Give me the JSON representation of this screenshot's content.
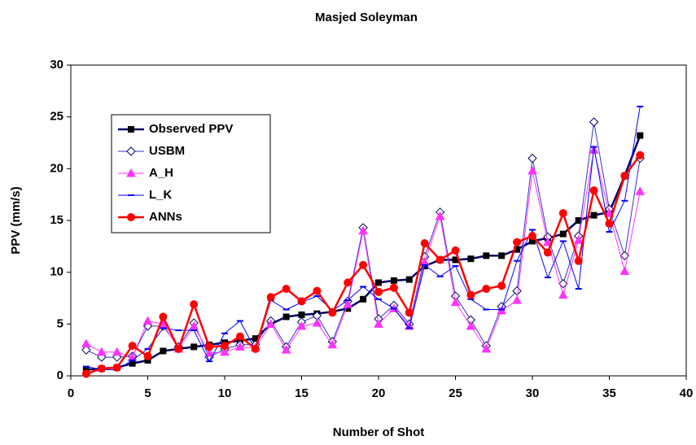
{
  "chart_data": {
    "type": "line",
    "title": "Masjed Soleyman",
    "x_label": "Number of Shot",
    "y_label": "PPV (mm/s)",
    "x": [
      1,
      2,
      3,
      4,
      5,
      6,
      7,
      8,
      9,
      10,
      11,
      12,
      13,
      14,
      15,
      16,
      17,
      18,
      19,
      20,
      21,
      22,
      23,
      24,
      25,
      26,
      27,
      28,
      29,
      30,
      31,
      32,
      33,
      34,
      35,
      36,
      37
    ],
    "series": [
      {
        "name": "Observed PPV",
        "color": "#000066",
        "marker": "square",
        "line_width": 2.5,
        "values": [
          0.6,
          0.7,
          0.8,
          1.2,
          1.5,
          2.4,
          2.6,
          2.8,
          3.0,
          3.2,
          3.4,
          3.6,
          5.0,
          5.7,
          5.9,
          6.0,
          6.2,
          6.5,
          7.4,
          9.0,
          9.2,
          9.3,
          10.6,
          11.2,
          11.2,
          11.3,
          11.6,
          11.6,
          12.2,
          13.0,
          13.3,
          13.7,
          15.0,
          15.5,
          15.8,
          19.3,
          23.2
        ]
      },
      {
        "name": "USBM",
        "color": "#3333cc",
        "marker": "diamond",
        "line_width": 1,
        "values": [
          2.5,
          1.8,
          1.8,
          1.9,
          4.8,
          4.8,
          2.8,
          5.1,
          1.8,
          2.6,
          3.0,
          3.0,
          5.3,
          2.8,
          5.2,
          5.8,
          3.3,
          7.2,
          14.3,
          5.5,
          6.8,
          5.0,
          11.5,
          15.8,
          7.7,
          5.4,
          2.9,
          6.7,
          8.2,
          21.0,
          13.4,
          8.9,
          13.5,
          24.5,
          16.1,
          11.6,
          21.0
        ]
      },
      {
        "name": "A_H",
        "color": "#ff33ff",
        "marker": "triangle",
        "line_width": 1,
        "values": [
          3.1,
          2.3,
          2.3,
          1.8,
          5.3,
          5.0,
          2.6,
          4.8,
          2.2,
          2.3,
          2.8,
          2.7,
          5.0,
          2.5,
          4.8,
          5.1,
          3.0,
          6.9,
          14.0,
          5.0,
          6.5,
          4.8,
          11.0,
          15.4,
          7.1,
          4.8,
          2.6,
          6.3,
          7.3,
          19.8,
          12.9,
          7.8,
          13.1,
          21.8,
          15.7,
          10.1,
          17.8
        ]
      },
      {
        "name": "L_K",
        "color": "#0000ff",
        "marker": "dash",
        "line_width": 1,
        "values": [
          0.9,
          0.6,
          0.6,
          1.5,
          2.6,
          4.6,
          4.4,
          4.4,
          1.4,
          4.1,
          5.3,
          2.5,
          7.3,
          6.4,
          7.1,
          7.7,
          6.3,
          7.3,
          8.6,
          7.4,
          6.5,
          4.6,
          10.7,
          9.6,
          10.6,
          7.4,
          6.4,
          6.4,
          11.1,
          14.1,
          9.5,
          13.0,
          8.4,
          22.1,
          13.9,
          16.9,
          26.0
        ]
      },
      {
        "name": "ANNs",
        "color": "#ff0000",
        "marker": "circle",
        "line_width": 2.5,
        "values": [
          0.2,
          0.7,
          0.8,
          2.9,
          1.9,
          5.7,
          2.6,
          6.9,
          2.8,
          2.9,
          3.8,
          2.6,
          7.6,
          8.4,
          7.2,
          8.2,
          6.1,
          9.0,
          10.7,
          8.1,
          8.5,
          6.1,
          12.8,
          11.2,
          12.1,
          7.8,
          8.4,
          8.7,
          12.9,
          13.5,
          11.9,
          15.7,
          11.1,
          17.9,
          14.7,
          19.3,
          21.3
        ]
      }
    ],
    "xlim": [
      0,
      40
    ],
    "xticks": [
      0,
      5,
      10,
      15,
      20,
      25,
      30,
      35,
      40
    ],
    "ylim": [
      0,
      30
    ],
    "yticks": [
      0,
      5,
      10,
      15,
      20,
      25,
      30
    ],
    "grid": false,
    "legend": "upper left"
  }
}
